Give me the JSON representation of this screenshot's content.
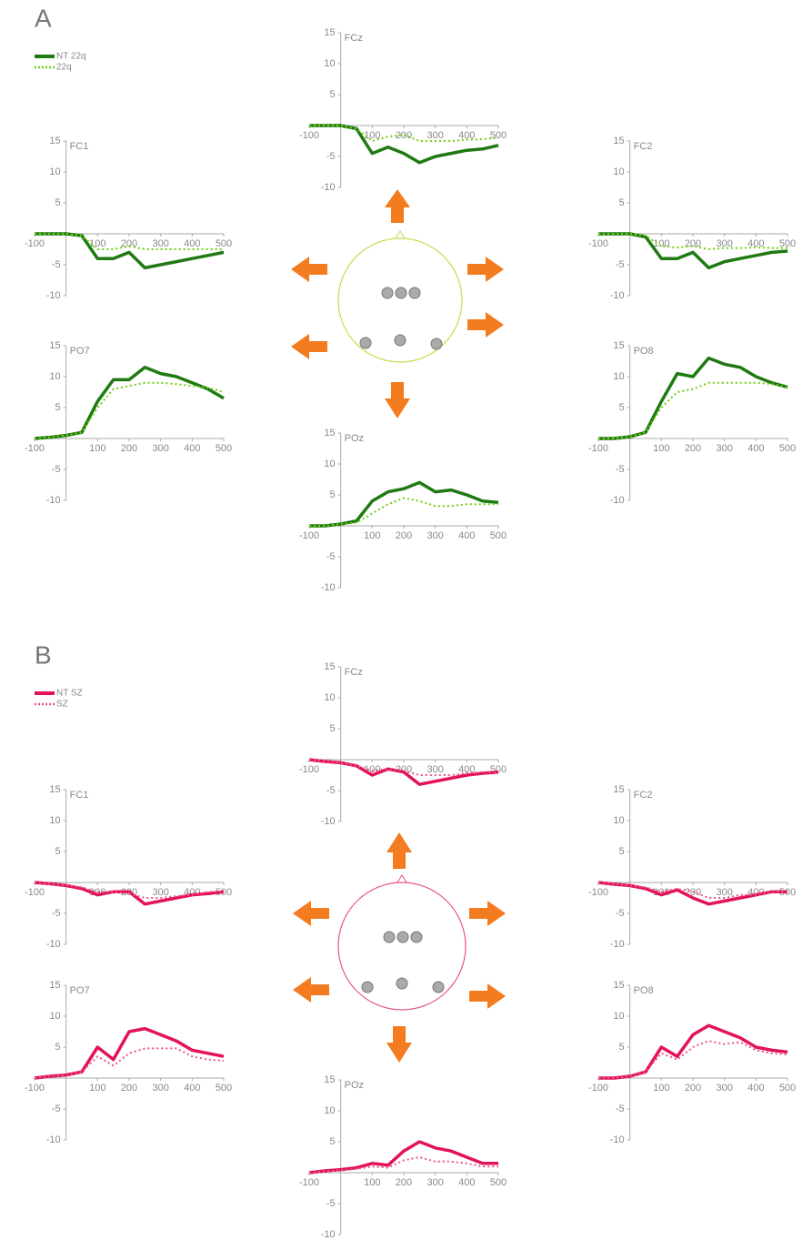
{
  "chart_data": [
    {
      "type": "line",
      "label": "A",
      "x": [
        -100,
        -50,
        0,
        50,
        100,
        150,
        200,
        250,
        300,
        350,
        400,
        450,
        500
      ],
      "xlim": [
        -100,
        500
      ],
      "xticks": [
        -100,
        100,
        200,
        300,
        400,
        500
      ],
      "ylim": [
        -10,
        15
      ],
      "yticks": [
        -10,
        -5,
        5,
        10,
        15
      ],
      "series": [
        {
          "name": "NT 22q",
          "color": "#1f7a12",
          "dash": false
        },
        {
          "name": "22q",
          "color": "#6fcf10",
          "dash": true
        }
      ],
      "subplots": [
        {
          "title": "FCz",
          "values": [
            [
              0,
              0,
              0,
              -0.5,
              -4.5,
              -3.5,
              -4.5,
              -6,
              -5,
              -4.5,
              -4,
              -3.8,
              -3.2
            ],
            [
              0,
              0,
              0,
              -0.5,
              -2.5,
              -1.8,
              -1.5,
              -2.5,
              -2.5,
              -2.5,
              -2.3,
              -2.2,
              -2
            ]
          ]
        },
        {
          "title": "FC1",
          "values": [
            [
              0,
              0,
              0,
              -0.3,
              -4,
              -4,
              -3,
              -5.5,
              -5,
              -4.5,
              -4,
              -3.5,
              -3
            ],
            [
              0,
              0,
              0,
              -0.3,
              -2.5,
              -2.5,
              -2,
              -2.5,
              -2.5,
              -2.5,
              -2.5,
              -2.5,
              -2.5
            ]
          ]
        },
        {
          "title": "FC2",
          "values": [
            [
              0,
              0,
              0,
              -0.5,
              -4,
              -4,
              -3,
              -5.5,
              -4.5,
              -4,
              -3.5,
              -3,
              -2.8
            ],
            [
              0,
              0,
              0,
              -0.3,
              -2,
              -2.2,
              -2,
              -2.5,
              -2.3,
              -2.3,
              -2.2,
              -2.3,
              -2.3
            ]
          ]
        },
        {
          "title": "PO7",
          "values": [
            [
              0,
              0.2,
              0.5,
              1,
              6,
              9.5,
              9.5,
              11.5,
              10.5,
              10,
              9,
              8,
              6.5
            ],
            [
              0,
              0.2,
              0.5,
              1,
              5,
              8,
              8.5,
              9,
              9,
              8.8,
              8.5,
              8.2,
              7.5
            ]
          ]
        },
        {
          "title": "PO8",
          "values": [
            [
              0,
              0,
              0.3,
              1,
              6,
              10.5,
              10,
              13,
              12,
              11.5,
              10,
              9,
              8.3
            ],
            [
              0,
              0,
              0.3,
              1,
              5,
              7.5,
              8,
              9,
              9,
              9,
              9,
              8.8,
              8.3
            ]
          ]
        },
        {
          "title": "POz",
          "values": [
            [
              0,
              0,
              0.3,
              0.8,
              4,
              5.5,
              6,
              7,
              5.5,
              5.8,
              5,
              4,
              3.8
            ],
            [
              0,
              0,
              0.3,
              0.5,
              2,
              3.5,
              4.5,
              4,
              3.2,
              3.2,
              3.5,
              3.5,
              3.5
            ]
          ]
        }
      ]
    },
    {
      "type": "line",
      "label": "B",
      "x": [
        -100,
        -50,
        0,
        50,
        100,
        150,
        200,
        250,
        300,
        350,
        400,
        450,
        500
      ],
      "xlim": [
        -100,
        500
      ],
      "xticks": [
        -100,
        100,
        200,
        300,
        400,
        500
      ],
      "ylim": [
        -10,
        15
      ],
      "yticks": [
        -10,
        -5,
        5,
        10,
        15
      ],
      "series": [
        {
          "name": "NT SZ",
          "color": "#e3125c",
          "dash": false
        },
        {
          "name": "SZ",
          "color": "#e8548c",
          "dash": true
        }
      ],
      "subplots": [
        {
          "title": "FCz",
          "values": [
            [
              0,
              -0.3,
              -0.5,
              -1,
              -2.5,
              -1.5,
              -2,
              -4,
              -3.5,
              -3,
              -2.5,
              -2.2,
              -2
            ],
            [
              0,
              -0.2,
              -0.5,
              -1,
              -1.8,
              -1.5,
              -1.8,
              -2.5,
              -2.5,
              -2.5,
              -2.2,
              -2,
              -2
            ]
          ]
        },
        {
          "title": "FC1",
          "values": [
            [
              0,
              -0.2,
              -0.5,
              -1,
              -2,
              -1.5,
              -1.5,
              -3.5,
              -3,
              -2.5,
              -2,
              -1.8,
              -1.5
            ],
            [
              0,
              -0.2,
              -0.4,
              -0.8,
              -1.5,
              -1.5,
              -1.8,
              -2.5,
              -2.5,
              -2.2,
              -2,
              -1.5,
              -1.5
            ]
          ]
        },
        {
          "title": "FC2",
          "values": [
            [
              0,
              -0.3,
              -0.5,
              -1,
              -2,
              -1.2,
              -2.5,
              -3.5,
              -3,
              -2.5,
              -2,
              -1.5,
              -1.5
            ],
            [
              0,
              -0.3,
              -0.5,
              -0.8,
              -1.5,
              -1,
              -1.5,
              -2.5,
              -2.5,
              -2,
              -2,
              -1.5,
              -1.5
            ]
          ]
        },
        {
          "title": "PO7",
          "values": [
            [
              0,
              0.3,
              0.5,
              1,
              5,
              3,
              7.5,
              8,
              7,
              6,
              4.5,
              4,
              3.5
            ],
            [
              0,
              0.3,
              0.5,
              1,
              3.5,
              2,
              4,
              4.8,
              4.8,
              4.8,
              3.5,
              3,
              2.8
            ]
          ]
        },
        {
          "title": "PO8",
          "values": [
            [
              0,
              0,
              0.3,
              1,
              5,
              3.5,
              7,
              8.5,
              7.5,
              6.5,
              5,
              4.5,
              4.2
            ],
            [
              0,
              0,
              0.3,
              1,
              4,
              3,
              5,
              6,
              5.5,
              5.8,
              4.5,
              4,
              3.8
            ]
          ]
        },
        {
          "title": "POz",
          "values": [
            [
              0,
              0.3,
              0.5,
              0.8,
              1.5,
              1.2,
              3.5,
              5,
              4,
              3.5,
              2.5,
              1.5,
              1.5
            ],
            [
              0,
              0.2,
              0.4,
              0.6,
              1,
              0.8,
              2,
              2.5,
              1.8,
              1.8,
              1.5,
              1,
              1
            ]
          ]
        }
      ]
    }
  ]
}
